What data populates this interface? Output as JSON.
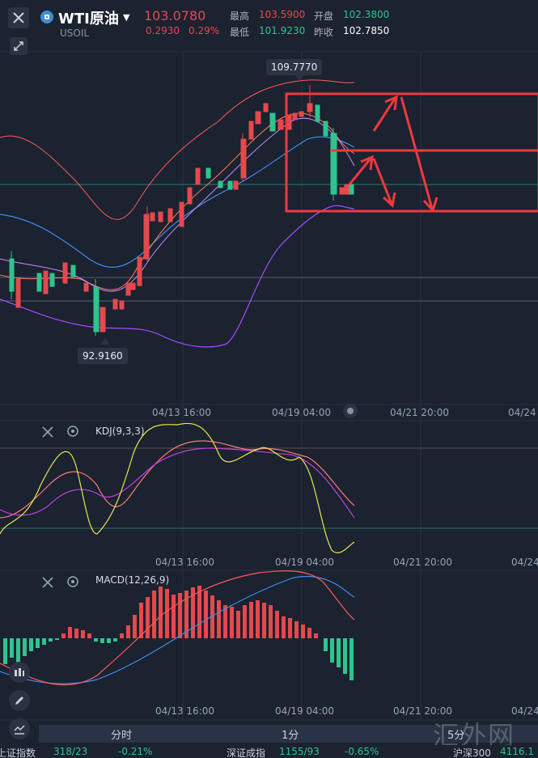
{
  "header": {
    "symbol_name": "WTI原油",
    "symbol_code": "USOIL",
    "last_price": "103.0780",
    "change_abs": "0.2930",
    "change_pct": "0.29%",
    "high_label": "最高",
    "high_value": "103.5900",
    "open_label": "开盘",
    "open_value": "102.3800",
    "low_label": "最低",
    "low_value": "101.9230",
    "prev_close_label": "昨收",
    "prev_close_value": "102.7850"
  },
  "main_chart": {
    "high_callout": "109.7770",
    "low_callout": "92.9160",
    "x_ticks": [
      "04/13 16:00",
      "04/19 04:00",
      "04/21 20:00",
      "04/24"
    ]
  },
  "kdj": {
    "label": "KDJ(9,3,3)",
    "x_ticks": [
      "04/13 16:00",
      "04/19 04:00",
      "04/21 20:00",
      "04/24"
    ]
  },
  "macd": {
    "label": "MACD(12,26,9)",
    "x_ticks": [
      "04/13 16:00",
      "04/19 04:00",
      "04/21 20:00",
      "04/24"
    ]
  },
  "timeframes": {
    "tf1": "分时",
    "tf2": "1分",
    "tf3": "5分"
  },
  "ticker": {
    "item1_name": "上证指数",
    "item1_value": "318/23",
    "item1_pct": "-0.21%",
    "item2_name": "深证成指",
    "item2_value": "1155/93",
    "item2_pct": "-0.65%",
    "item3_name": "沪深300",
    "item3_value": "4116.1"
  },
  "watermark": "汇外网",
  "colors": {
    "up": "#e5484d",
    "down": "#2fc48d",
    "background": "#1b2230",
    "annotation": "#f0393f",
    "ma_blue": "#3e8ef0",
    "boll": "#ff5a5a",
    "purple": "#a64cff"
  }
}
